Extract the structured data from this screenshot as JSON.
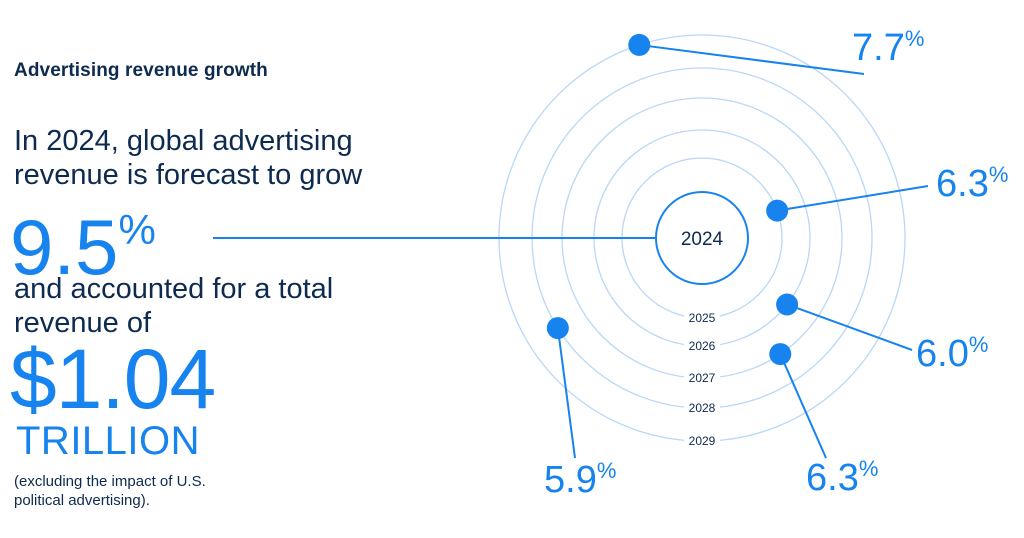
{
  "header": {
    "title": "Advertising revenue growth"
  },
  "intro_text": "In 2024, global advertising revenue is forecast to grow",
  "growth": {
    "value": "9.5",
    "unit": "%"
  },
  "middle_text": "and accounted for a total revenue of",
  "revenue": {
    "value": "$1.04",
    "unit": "TRILLION"
  },
  "footnote": "(excluding the impact of U.S. political advertising).",
  "colors": {
    "accent": "#1683ee",
    "text": "#0d2a4f",
    "ring": "#b9d7f7"
  },
  "chart_data": {
    "type": "radial-rings",
    "center_label": "2024",
    "center_value_pct": 9.5,
    "years": [
      "2025",
      "2026",
      "2027",
      "2028",
      "2029"
    ],
    "values": [
      6.3,
      6.0,
      6.3,
      5.9,
      7.7
    ],
    "value_unit": "%",
    "points": [
      {
        "year": "2029",
        "value": 7.7
      },
      {
        "year": "2025",
        "value": 6.3
      },
      {
        "year": "2026",
        "value": 6.0
      },
      {
        "year": "2027",
        "value": 6.3
      },
      {
        "year": "2028",
        "value": 5.9
      }
    ]
  }
}
